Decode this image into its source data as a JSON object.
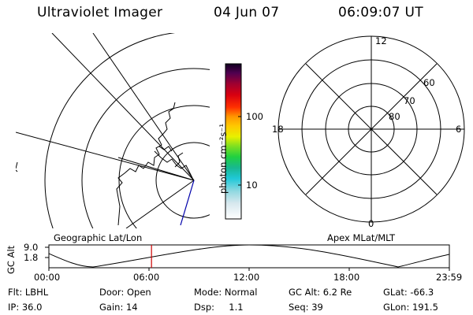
{
  "header": {
    "instrument": "Ultraviolet Imager",
    "date": "04 Jun 07",
    "time": "06:09:07 UT"
  },
  "colorbar": {
    "unit_label": "photon cm⁻²s⁻¹",
    "ticks": [
      "100",
      "10"
    ]
  },
  "polar_plot": {
    "mlt_labels": [
      "12",
      "18",
      "6",
      "0"
    ],
    "mlat_labels": [
      "60",
      "70",
      "80"
    ]
  },
  "timeline": {
    "left_caption": "Geographic Lat/Lon",
    "right_caption": "Apex MLat/MLT",
    "axis_title": "GC Alt",
    "y_ticks": [
      "9.0",
      "1.8"
    ],
    "x_ticks": [
      "00:00",
      "06:00",
      "12:00",
      "18:00",
      "23:59"
    ],
    "current_time_hours": 6.15
  },
  "status": {
    "filter": "Flt: LBHL",
    "door": "Door: Open",
    "mode": "Mode: Normal",
    "gc_alt": "GC Alt: 6.2 Re",
    "glat": "GLat: -66.3",
    "ip": "IP: 36.0",
    "gain": "Gain: 14",
    "dsp": "Dsp:     1.1",
    "seq": "Seq: 39",
    "glon": "GLon: 191.5"
  },
  "colors": {
    "marker": "#cc0000",
    "track": "#0000aa"
  }
}
